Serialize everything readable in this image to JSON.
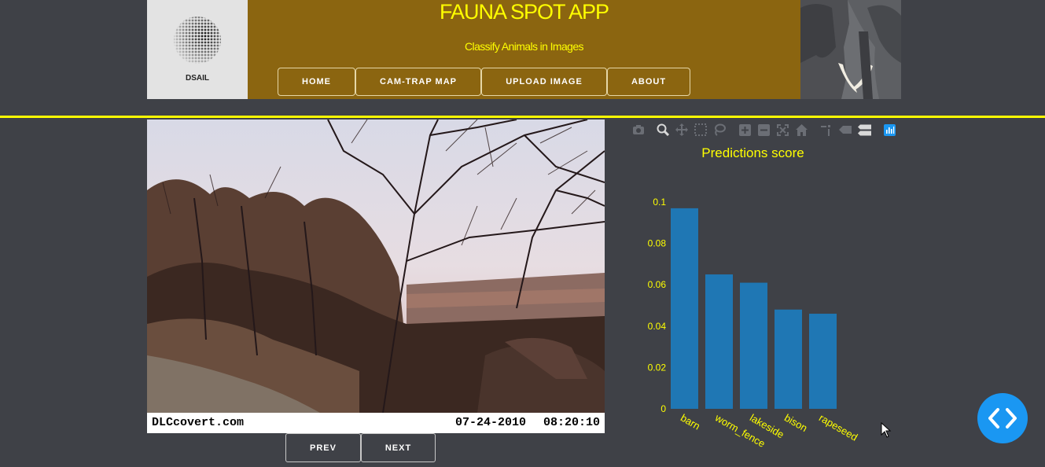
{
  "header": {
    "logo_text": "DSAIL",
    "title": "FAUNA SPOT APP",
    "subtitle": "Classify Animals in Images",
    "nav": [
      "HOME",
      "CAM-TRAP MAP",
      "UPLOAD IMAGE",
      "ABOUT"
    ]
  },
  "photo": {
    "watermark": "DLCcovert.com",
    "date": "07-24-2010",
    "time": "08:20:10"
  },
  "pager": {
    "prev": "PREV",
    "next": "NEXT"
  },
  "modebar": [
    "camera-icon",
    "zoom-icon",
    "pan-icon",
    "box-select-icon",
    "lasso-select-icon",
    "zoom-in-icon",
    "zoom-out-icon",
    "autoscale-icon",
    "reset-axes-icon",
    "spike-lines-icon",
    "hover-closest-icon",
    "hover-compare-icon",
    "plotly-logo-icon"
  ],
  "colors": {
    "accent": "#ffff00",
    "header_bg": "#8b6510",
    "page_bg": "#3f4147",
    "bar": "#1f77b4",
    "fab": "#1a97f2"
  },
  "chart_data": {
    "type": "bar",
    "title": "Predictions score",
    "categories": [
      "barn",
      "worm_fence",
      "lakeside",
      "bison",
      "rapeseed"
    ],
    "values": [
      0.097,
      0.065,
      0.061,
      0.048,
      0.046
    ],
    "yticks": [
      "0",
      "0.02",
      "0.04",
      "0.06",
      "0.08",
      "0.1"
    ],
    "ylim": [
      0,
      0.1
    ],
    "grid": false
  },
  "fab_icon": "code-icon"
}
